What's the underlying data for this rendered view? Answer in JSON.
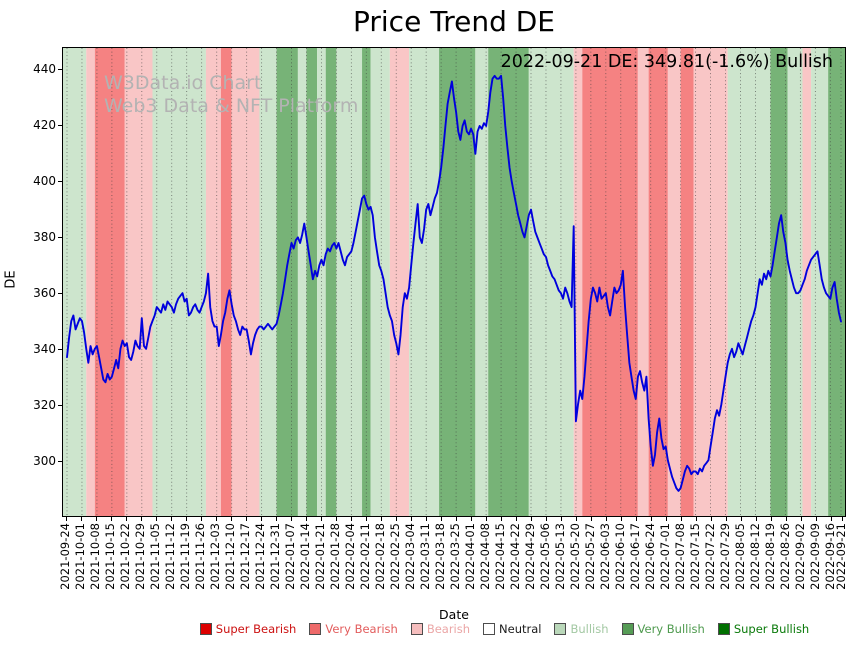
{
  "title": "Price Trend DE",
  "annotation": "2022-09-21 DE: 349.81(-1.6%) Bullish",
  "watermark": {
    "line1": "W3Data.io Chart",
    "line2": "Web3 Data & NFT Platform"
  },
  "chart_data": {
    "type": "line",
    "title": "Price Trend DE",
    "xlabel": "Date",
    "ylabel": "DE",
    "ylim": [
      280,
      448
    ],
    "yticks": [
      300,
      320,
      340,
      360,
      380,
      400,
      420,
      440
    ],
    "grid": {
      "vertical_dotted": true,
      "horizontal": false
    },
    "legend_position": "bottom-center",
    "x_tick_days": [
      0,
      7,
      14,
      21,
      28,
      35,
      42,
      49,
      56,
      63,
      70,
      77,
      84,
      91,
      98,
      105,
      112,
      119,
      126,
      133,
      140,
      147,
      154,
      161,
      168,
      175,
      182,
      189,
      196,
      203,
      210,
      217,
      224,
      231,
      238,
      245,
      252,
      259,
      266,
      273,
      280,
      287,
      294,
      301,
      308,
      315,
      322,
      329,
      336,
      343,
      350,
      357,
      362
    ],
    "x_tick_labels": [
      "2021-09-24",
      "2021-10-01",
      "2021-10-08",
      "2021-10-15",
      "2021-10-22",
      "2021-10-29",
      "2021-11-05",
      "2021-11-12",
      "2021-11-19",
      "2021-11-26",
      "2021-12-03",
      "2021-12-10",
      "2021-12-17",
      "2021-12-24",
      "2021-12-31",
      "2022-01-07",
      "2022-01-14",
      "2022-01-21",
      "2022-01-28",
      "2022-02-04",
      "2022-02-11",
      "2022-02-18",
      "2022-02-25",
      "2022-03-04",
      "2022-03-11",
      "2022-03-18",
      "2022-03-25",
      "2022-04-01",
      "2022-04-08",
      "2022-04-15",
      "2022-04-22",
      "2022-04-29",
      "2022-05-06",
      "2022-05-13",
      "2022-05-20",
      "2022-05-27",
      "2022-06-03",
      "2022-06-10",
      "2022-06-17",
      "2022-06-24",
      "2022-07-01",
      "2022-07-08",
      "2022-07-15",
      "2022-07-22",
      "2022-07-29",
      "2022-08-05",
      "2022-08-12",
      "2022-08-19",
      "2022-08-26",
      "2022-09-02",
      "2022-09-09",
      "2022-09-16",
      "2022-09-21"
    ],
    "series": [
      {
        "name": "DE",
        "color": "#0000dd",
        "start_date": "2021-09-24",
        "values_daily": [
          337,
          344,
          350,
          352,
          347,
          349,
          351,
          350,
          346,
          340,
          335,
          341,
          338,
          340,
          341,
          337,
          333,
          329,
          328,
          331,
          329,
          330,
          333,
          336,
          333,
          340,
          343,
          341,
          342,
          337,
          336,
          339,
          343,
          341,
          340,
          351,
          341,
          340,
          344,
          348,
          350,
          352,
          355,
          354,
          353,
          356,
          354,
          357,
          356,
          355,
          353,
          356,
          358,
          359,
          360,
          357,
          358,
          352,
          353,
          355,
          356,
          354,
          353,
          355,
          357,
          360,
          367,
          355,
          350,
          348,
          348,
          341,
          345,
          350,
          353,
          358,
          361,
          356,
          352,
          350,
          347,
          345,
          348,
          347,
          347,
          343,
          338,
          342,
          345,
          347,
          348,
          348,
          347,
          348,
          349,
          348,
          347,
          348,
          349,
          352,
          356,
          360,
          365,
          370,
          374,
          378,
          376,
          379,
          380,
          378,
          381,
          385,
          380,
          375,
          370,
          365,
          368,
          366,
          370,
          372,
          370,
          374,
          376,
          375,
          377,
          378,
          376,
          378,
          375,
          372,
          370,
          373,
          374,
          375,
          378,
          382,
          386,
          390,
          394,
          395,
          392,
          390,
          391,
          388,
          380,
          375,
          370,
          368,
          365,
          360,
          355,
          352,
          350,
          345,
          342,
          338,
          345,
          355,
          360,
          358,
          362,
          370,
          378,
          385,
          392,
          380,
          378,
          383,
          390,
          392,
          388,
          391,
          394,
          396,
          400,
          405,
          412,
          420,
          428,
          432,
          436,
          430,
          425,
          418,
          415,
          420,
          422,
          418,
          417,
          419,
          417,
          410,
          418,
          420,
          419,
          421,
          420,
          425,
          432,
          437,
          438,
          437,
          437,
          438,
          430,
          420,
          412,
          405,
          400,
          396,
          392,
          388,
          385,
          382,
          380,
          384,
          388,
          390,
          386,
          382,
          380,
          378,
          376,
          374,
          373,
          370,
          368,
          366,
          365,
          363,
          361,
          360,
          358,
          362,
          360,
          357,
          355,
          384,
          314,
          320,
          325,
          322,
          330,
          340,
          350,
          358,
          362,
          360,
          357,
          362,
          358,
          359,
          360,
          355,
          352,
          357,
          362,
          360,
          361,
          363,
          368,
          355,
          345,
          335,
          330,
          325,
          322,
          330,
          332,
          328,
          325,
          330,
          315,
          305,
          298,
          302,
          310,
          315,
          308,
          304,
          305,
          300,
          297,
          294,
          292,
          290,
          289,
          290,
          293,
          296,
          298,
          297,
          295,
          296,
          296,
          295,
          297,
          296,
          298,
          299,
          300,
          305,
          310,
          315,
          318,
          316,
          320,
          325,
          330,
          335,
          338,
          340,
          337,
          339,
          342,
          340,
          338,
          341,
          344,
          347,
          350,
          352,
          355,
          360,
          365,
          363,
          367,
          365,
          368,
          366,
          370,
          375,
          380,
          385,
          388,
          382,
          378,
          372,
          368,
          365,
          362,
          360,
          360,
          361,
          363,
          365,
          368,
          370,
          372,
          373,
          374,
          375,
          370,
          365,
          362,
          360,
          359,
          358,
          362,
          364,
          358,
          353,
          349.81
        ]
      }
    ],
    "last_point": {
      "date": "2022-09-21",
      "value": 349.81,
      "change_pct": "-1.6%",
      "sentiment": "Bullish"
    },
    "band_format": [
      "start_day",
      "end_day",
      "sentiment"
    ],
    "sentiment_bands": [
      [
        0,
        9,
        "bullish"
      ],
      [
        9,
        13,
        "bearish"
      ],
      [
        13,
        27,
        "very_bearish"
      ],
      [
        27,
        40,
        "bearish"
      ],
      [
        40,
        65,
        "bullish"
      ],
      [
        65,
        72,
        "bearish"
      ],
      [
        72,
        77,
        "very_bearish"
      ],
      [
        77,
        90,
        "bearish"
      ],
      [
        90,
        98,
        "bullish"
      ],
      [
        98,
        108,
        "very_bullish"
      ],
      [
        108,
        112,
        "bullish"
      ],
      [
        112,
        117,
        "very_bullish"
      ],
      [
        117,
        121,
        "bullish"
      ],
      [
        121,
        126,
        "very_bullish"
      ],
      [
        126,
        138,
        "bullish"
      ],
      [
        138,
        142,
        "very_bullish"
      ],
      [
        142,
        151,
        "bullish"
      ],
      [
        151,
        160,
        "bearish"
      ],
      [
        160,
        174,
        "bullish"
      ],
      [
        174,
        191,
        "very_bullish"
      ],
      [
        191,
        197,
        "bullish"
      ],
      [
        197,
        216,
        "very_bullish"
      ],
      [
        216,
        237,
        "bullish"
      ],
      [
        237,
        241,
        "bearish"
      ],
      [
        241,
        267,
        "very_bearish"
      ],
      [
        267,
        272,
        "bearish"
      ],
      [
        272,
        281,
        "very_bearish"
      ],
      [
        281,
        287,
        "bearish"
      ],
      [
        287,
        293,
        "very_bearish"
      ],
      [
        293,
        309,
        "bearish"
      ],
      [
        309,
        329,
        "bullish"
      ],
      [
        329,
        337,
        "very_bullish"
      ],
      [
        337,
        344,
        "bullish"
      ],
      [
        344,
        348,
        "bearish"
      ],
      [
        348,
        356,
        "bullish"
      ],
      [
        356,
        362,
        "very_bullish"
      ]
    ],
    "sentiment_colors": {
      "super_bearish": "#e60000",
      "very_bearish": "#f58282",
      "bearish": "#f9c6c6",
      "neutral": "#ffffff",
      "bullish": "#cde5cd",
      "very_bullish": "#77b377",
      "super_bullish": "#1e7a1e"
    }
  },
  "legend": {
    "items": [
      {
        "label": "Super Bearish",
        "color": "#dd0000",
        "text_color": "#cc1111"
      },
      {
        "label": "Very Bearish",
        "color": "#ee6a6a",
        "text_color": "#e25c5c"
      },
      {
        "label": "Bearish",
        "color": "#f6bebe",
        "text_color": "#eba6a6"
      },
      {
        "label": "Neutral",
        "color": "#ffffff",
        "text_color": "#1a1a1a"
      },
      {
        "label": "Bullish",
        "color": "#bad8ba",
        "text_color": "#a3c8a3"
      },
      {
        "label": "Very Bullish",
        "color": "#569c56",
        "text_color": "#4e9a4e"
      },
      {
        "label": "Super Bullish",
        "color": "#007000",
        "text_color": "#0a7a0a"
      }
    ]
  }
}
